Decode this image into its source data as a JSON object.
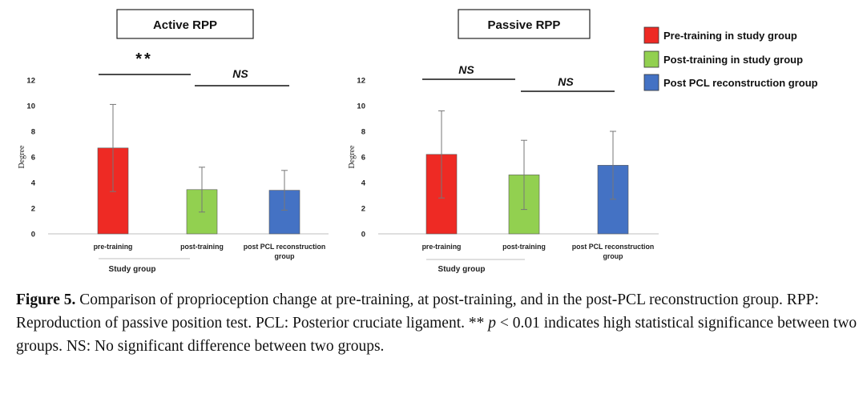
{
  "chart_data": [
    {
      "type": "bar",
      "title": "Active RPP",
      "ylabel": "Degree",
      "ylim": [
        0,
        12
      ],
      "yticks": [
        0,
        2,
        4,
        6,
        8,
        10,
        12
      ],
      "categories": [
        "pre-training",
        "post-training",
        "post PCL reconstruction group"
      ],
      "category_label_lines": [
        [
          "pre-training"
        ],
        [
          "post-training"
        ],
        [
          "post PCL reconstruction",
          "group"
        ]
      ],
      "group_label": "Study group",
      "values": [
        6.7,
        3.45,
        3.4
      ],
      "errors": [
        3.4,
        1.75,
        1.55
      ],
      "colors": [
        "#ee2a24",
        "#92d050",
        "#4472c4"
      ],
      "significance": [
        {
          "label": "**",
          "from": 0,
          "to": 1,
          "italic": false
        },
        {
          "label": "NS",
          "from": 1,
          "to": 2,
          "italic": true
        }
      ]
    },
    {
      "type": "bar",
      "title": "Passive RPP",
      "ylabel": "Degree",
      "ylim": [
        0,
        12
      ],
      "yticks": [
        0,
        2,
        4,
        6,
        8,
        10,
        12
      ],
      "categories": [
        "pre-training",
        "post-training",
        "post PCL reconstruction group"
      ],
      "category_label_lines": [
        [
          "pre-training"
        ],
        [
          "post-training"
        ],
        [
          "post PCL reconstruction",
          "group"
        ]
      ],
      "group_label": "Study group",
      "values": [
        6.2,
        4.6,
        5.35
      ],
      "errors": [
        3.4,
        2.7,
        2.65
      ],
      "colors": [
        "#ee2a24",
        "#92d050",
        "#4472c4"
      ],
      "significance": [
        {
          "label": "NS",
          "from": 0,
          "to": 1,
          "italic": true
        },
        {
          "label": "NS",
          "from": 1,
          "to": 2,
          "italic": true
        }
      ]
    }
  ],
  "legend": [
    {
      "label": "Pre-training in study group",
      "color": "#ee2a24"
    },
    {
      "label": "Post-training in study group",
      "color": "#92d050"
    },
    {
      "label": "Post PCL reconstruction group",
      "color": "#4472c4"
    }
  ],
  "caption": {
    "label": "Figure 5.",
    "text1": " Comparison of proprioception change at pre-training, at post-training, and in the post-PCL reconstruction group. RPP: Reproduction of passive position test. PCL: Posterior cruciate ligament. ** ",
    "p": "p",
    "text2": " < 0.01 indicates high statistical significance between two groups. NS: No significant difference between two groups."
  }
}
